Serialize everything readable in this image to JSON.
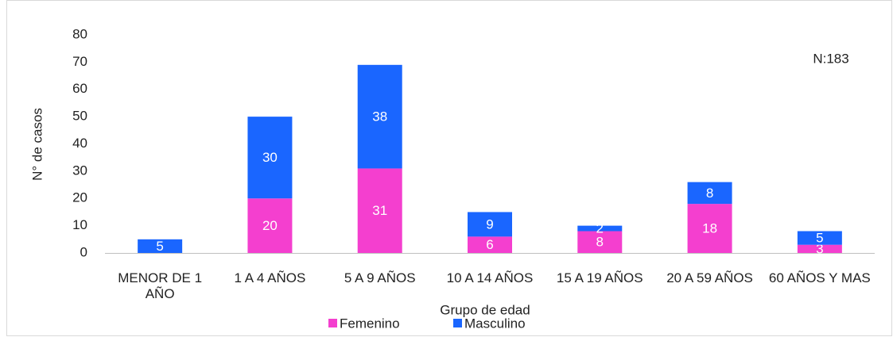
{
  "chart_data": {
    "type": "stacked_bar",
    "categories": [
      "MENOR DE 1 AÑO",
      "1 A 4 AÑOS",
      "5 A 9 AÑOS",
      "10 A 14 AÑOS",
      "15 A 19 AÑOS",
      "20 A 59 AÑOS",
      "60 AÑOS Y MAS"
    ],
    "series": [
      {
        "name": "Femenino",
        "color": "#f43fcf",
        "values": [
          null,
          20,
          31,
          6,
          8,
          18,
          3
        ]
      },
      {
        "name": "Masculino",
        "color": "#1a66ff",
        "values": [
          5,
          30,
          38,
          9,
          2,
          8,
          5
        ]
      }
    ],
    "ylim": [
      0,
      80
    ],
    "yticks": [
      0,
      10,
      20,
      30,
      40,
      50,
      60,
      70,
      80
    ],
    "grid": false,
    "y_label": "N° de casos",
    "x_label": "Grupo de edad",
    "annotation": "N:183",
    "legend": "bottom"
  }
}
